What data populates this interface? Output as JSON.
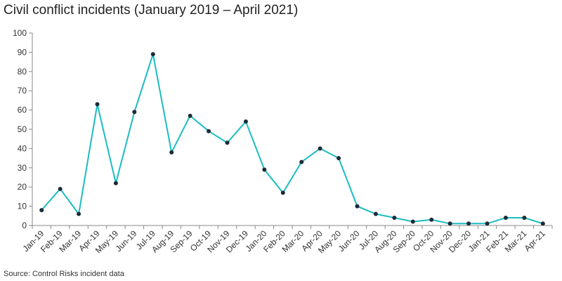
{
  "chart_data": {
    "type": "line",
    "title": "Civil conflict incidents (January 2019 – April 2021)",
    "source": "Source: Control Risks incident data",
    "categories": [
      "Jan-19",
      "Feb-19",
      "Mar-19",
      "Apr-19",
      "May-19",
      "Jun-19",
      "Jul-19",
      "Aug-19",
      "Sep-19",
      "Oct-19",
      "Nov-19",
      "Dec-19",
      "Jan-20",
      "Feb-20",
      "Mar-20",
      "Apr-20",
      "May-20",
      "Jun-20",
      "Jul-20",
      "Aug-20",
      "Sep-20",
      "Oct-20",
      "Nov-20",
      "Dec-20",
      "Jan-21",
      "Feb-21",
      "Mar-21",
      "Apr-21"
    ],
    "series": [
      {
        "values": [
          8,
          19,
          6,
          63,
          22,
          59,
          89,
          38,
          57,
          49,
          43,
          54,
          29,
          17,
          33,
          40,
          35,
          10,
          6,
          4,
          2,
          3,
          1,
          1,
          1,
          4,
          4,
          1
        ]
      }
    ],
    "yticks": [
      "0",
      "10",
      "20",
      "30",
      "40",
      "50",
      "60",
      "70",
      "80",
      "90",
      "100"
    ],
    "ylim": [
      0,
      100
    ],
    "xlabel": "",
    "ylabel": "",
    "grid": false,
    "legend": "none",
    "colors": {
      "line": "#1bbcc0",
      "marker": "#1d2b36",
      "axis": "#888888"
    }
  }
}
